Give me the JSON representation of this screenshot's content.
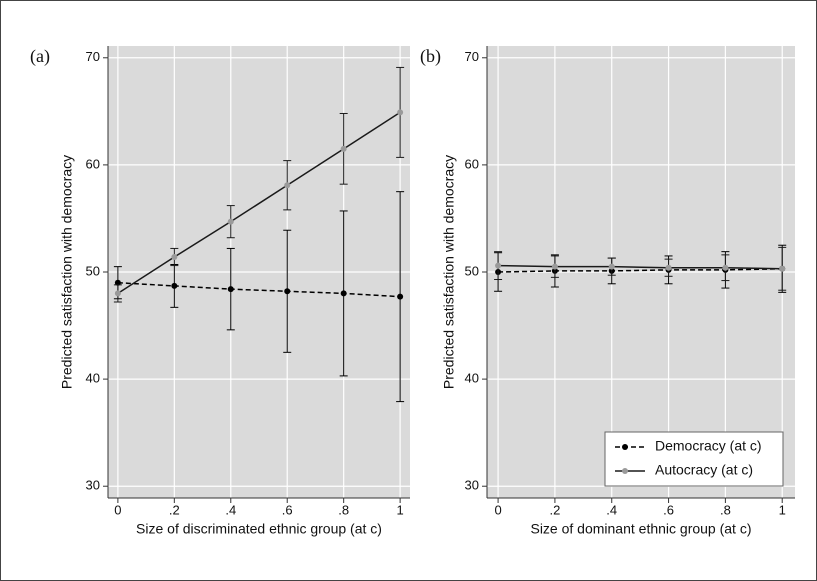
{
  "chart_data": [
    {
      "type": "line",
      "panel_label": "(a)",
      "x_label": "Size of discriminated ethnic group (at c)",
      "y_label": "Predicted satisfaction with democracy",
      "x": [
        0,
        0.2,
        0.4,
        0.6,
        0.8,
        1
      ],
      "xlim": [
        -0.035,
        1.035
      ],
      "ylim": [
        28.9,
        71.1
      ],
      "xticks": [
        0,
        {
          "value": 0.2,
          "label": ".2"
        },
        {
          "value": 0.4,
          "label": ".4"
        },
        {
          "value": 0.6,
          "label": ".6"
        },
        {
          "value": 0.8,
          "label": ".8"
        },
        1
      ],
      "yticks": [
        30,
        40,
        50,
        60,
        70
      ],
      "grid": true,
      "series": [
        {
          "color": "#000000",
          "marker_color": "#000000",
          "line_style": "dashed",
          "values": [
            49.0,
            48.7,
            48.4,
            48.2,
            48.0,
            47.7
          ],
          "errors": [
            1.5,
            2.0,
            3.8,
            5.7,
            7.7,
            9.8
          ]
        },
        {
          "color": "#1a1a1a",
          "marker_color": "#9a9a9a",
          "line_style": "solid",
          "values": [
            48.0,
            51.4,
            54.7,
            58.1,
            61.5,
            64.9
          ],
          "errors": [
            0.8,
            0.8,
            1.5,
            2.3,
            3.3,
            4.2
          ]
        }
      ]
    },
    {
      "type": "line",
      "panel_label": "(b)",
      "x_label": "Size of dominant ethnic group (at c)",
      "y_label": "Predicted satisfaction with democracy",
      "x": [
        0,
        0.2,
        0.4,
        0.6,
        0.8,
        1
      ],
      "xlim": [
        -0.039,
        1.045
      ],
      "ylim": [
        28.9,
        71.1
      ],
      "xticks": [
        0,
        {
          "value": 0.2,
          "label": ".2"
        },
        {
          "value": 0.4,
          "label": ".4"
        },
        {
          "value": 0.6,
          "label": ".6"
        },
        {
          "value": 0.8,
          "label": ".8"
        },
        1
      ],
      "yticks": [
        30,
        40,
        50,
        60,
        70
      ],
      "grid": true,
      "legend": "lower right",
      "series": [
        {
          "name": "Democracy (at c)",
          "color": "#000000",
          "marker_color": "#000000",
          "line_style": "dashed",
          "values": [
            50.0,
            50.1,
            50.1,
            50.2,
            50.2,
            50.3
          ],
          "errors": [
            1.8,
            1.5,
            1.2,
            1.3,
            1.7,
            2.2
          ]
        },
        {
          "name": "Autocracy (at c)",
          "color": "#1a1a1a",
          "marker_color": "#9a9a9a",
          "line_style": "solid",
          "values": [
            50.6,
            50.5,
            50.5,
            50.4,
            50.4,
            50.3
          ],
          "errors": [
            1.3,
            1.0,
            0.8,
            0.8,
            1.2,
            2.0
          ]
        }
      ]
    }
  ]
}
